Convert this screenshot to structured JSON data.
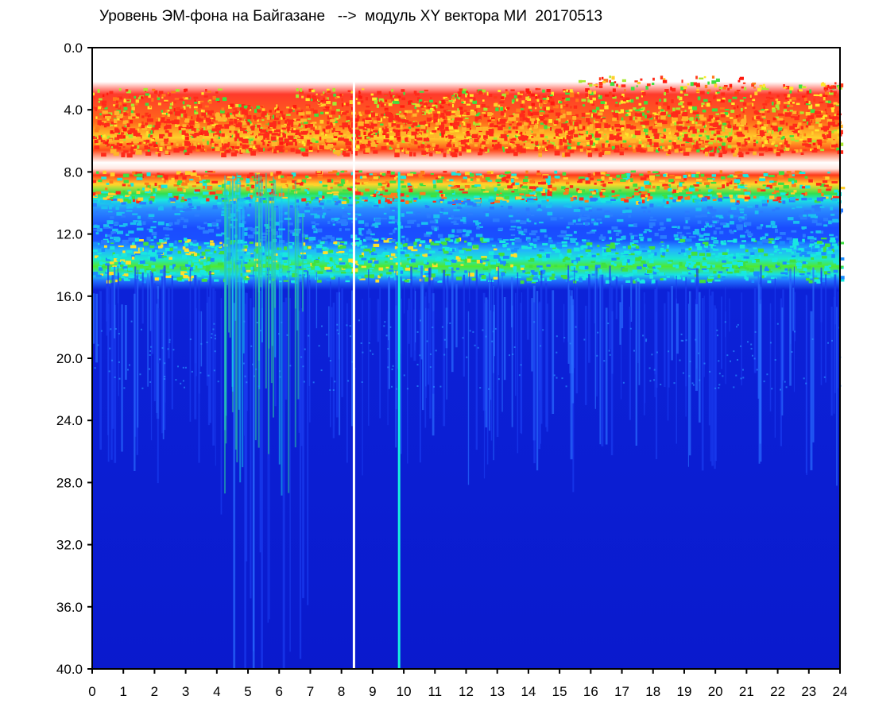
{
  "chart_data": {
    "type": "heatmap",
    "title": "Уровень ЭМ-фона на Байгазане   -->  модуль XY вектора МИ  20170513",
    "xlabel": "",
    "ylabel": "",
    "xlim": [
      0,
      24
    ],
    "ylim": [
      40,
      0
    ],
    "x_ticks": [
      "0",
      "1",
      "2",
      "3",
      "4",
      "5",
      "6",
      "7",
      "8",
      "9",
      "10",
      "11",
      "12",
      "13",
      "14",
      "15",
      "16",
      "17",
      "18",
      "19",
      "20",
      "21",
      "22",
      "23",
      "24"
    ],
    "y_ticks": [
      "0.0",
      "4.0",
      "8.0",
      "12.0",
      "16.0",
      "20.0",
      "24.0",
      "28.0",
      "32.0",
      "36.0",
      "40.0"
    ],
    "colormap": [
      "#ffffff",
      "#ff2a1a",
      "#ffe02a",
      "#22e040",
      "#18f0e0",
      "#1a5aff",
      "#0a1acd"
    ],
    "bands": [
      {
        "y_range": [
          2.5,
          8.0
        ],
        "level": "high",
        "colors": [
          "#ff2a1a",
          "#ffe02a",
          "#22e040"
        ]
      },
      {
        "y_range": [
          6.5,
          8.0
        ],
        "level": "gap",
        "colors": [
          "#ffffff"
        ]
      },
      {
        "y_range": [
          8.0,
          9.8
        ],
        "level": "high-mid",
        "colors": [
          "#ff2a1a",
          "#ffe02a",
          "#22e040"
        ]
      },
      {
        "y_range": [
          9.8,
          12.4
        ],
        "level": "low-mid",
        "colors": [
          "#1a5aff",
          "#18f0e0"
        ]
      },
      {
        "y_range": [
          12.4,
          14.8
        ],
        "level": "mid",
        "colors": [
          "#18f0e0",
          "#22e040",
          "#ffe02a"
        ]
      },
      {
        "y_range": [
          14.8,
          40.0
        ],
        "level": "low",
        "colors": [
          "#0a1acd"
        ]
      }
    ],
    "features": [
      {
        "x": 8.4,
        "y_range": [
          0,
          40
        ],
        "color": "#ffffff",
        "note": "white vertical gap"
      },
      {
        "x": 9.85,
        "y_range": [
          8,
          40
        ],
        "color": "#18f0e0",
        "note": "cyan vertical line"
      }
    ],
    "grid": false,
    "legend": "none"
  }
}
